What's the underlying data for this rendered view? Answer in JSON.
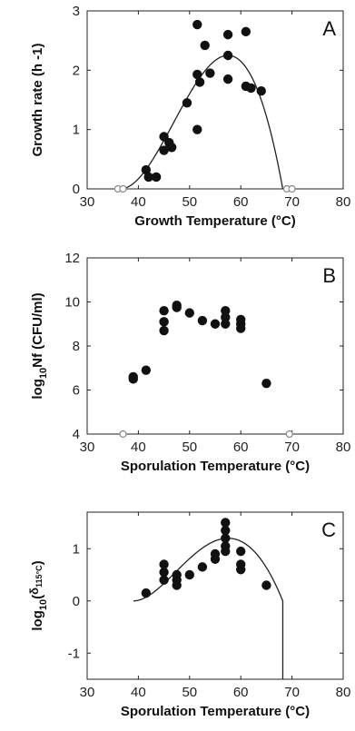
{
  "chart_data": [
    {
      "type": "scatter",
      "panel_label": "A",
      "xlabel": "Growth Temperature (°C)",
      "ylabel": "Growth rate (h -1)",
      "xlim": [
        30,
        80
      ],
      "ylim": [
        0,
        3
      ],
      "xticks": [
        "30",
        "40",
        "50",
        "60",
        "70",
        "80"
      ],
      "yticks": [
        "0",
        "1",
        "2",
        "3"
      ],
      "grid": false,
      "series": [
        {
          "marker": "filled",
          "x": [
            41.5,
            42,
            43.5,
            45,
            45,
            46,
            46.5,
            46.5,
            49.5,
            51.5,
            51.5,
            51.5,
            52,
            53,
            54,
            57.5,
            57.5,
            57.5,
            61,
            61,
            62,
            64
          ],
          "y": [
            0.32,
            0.2,
            0.2,
            0.88,
            0.65,
            0.78,
            0.7,
            0.7,
            1.45,
            2.77,
            1.93,
            1.0,
            1.8,
            2.42,
            1.95,
            2.6,
            2.25,
            1.85,
            2.65,
            1.73,
            1.7,
            1.65
          ]
        },
        {
          "marker": "open",
          "x": [
            36,
            37,
            69,
            70
          ],
          "y": [
            0,
            0,
            0,
            0
          ]
        }
      ],
      "curve": {
        "model": "cardinal",
        "Tmin": 36.5,
        "Topt": 57.5,
        "Tmax": 68.2,
        "peak": 2.25
      }
    },
    {
      "type": "scatter",
      "panel_label": "B",
      "xlabel": "Sporulation Temperature (°C)",
      "ylabel": "log10Nf (CFU/ml)",
      "xlim": [
        30,
        80
      ],
      "ylim": [
        4,
        12
      ],
      "xticks": [
        "30",
        "40",
        "50",
        "60",
        "70",
        "80"
      ],
      "yticks": [
        "4",
        "6",
        "8",
        "10",
        "12"
      ],
      "grid": false,
      "series": [
        {
          "marker": "filled",
          "x": [
            39,
            39,
            41.5,
            45,
            45,
            45,
            47.5,
            47.5,
            50,
            52.5,
            55,
            57,
            57,
            57,
            60,
            60,
            60,
            65
          ],
          "y": [
            6.6,
            6.5,
            6.9,
            9.6,
            9.1,
            8.7,
            9.85,
            9.75,
            9.5,
            9.15,
            9.0,
            9.6,
            9.3,
            9.0,
            9.2,
            9.0,
            8.8,
            6.3
          ]
        },
        {
          "marker": "open",
          "x": [
            37,
            69.5
          ],
          "y": [
            4,
            4
          ]
        }
      ]
    },
    {
      "type": "scatter",
      "panel_label": "C",
      "xlabel": "Sporulation Temperature (°C)",
      "ylabel": "log10(δ115°C)",
      "xlim": [
        30,
        80
      ],
      "ylim": [
        -1.5,
        1.7
      ],
      "xticks": [
        "30",
        "40",
        "50",
        "60",
        "70",
        "80"
      ],
      "yticks": [
        "-1",
        "0",
        "1"
      ],
      "grid": false,
      "series": [
        {
          "marker": "filled",
          "x": [
            41.5,
            45,
            45,
            45,
            47.5,
            47.5,
            47.5,
            50,
            52.5,
            55,
            55,
            57,
            57,
            57,
            57,
            57,
            60,
            60,
            60,
            65
          ],
          "y": [
            0.15,
            0.7,
            0.55,
            0.4,
            0.5,
            0.4,
            0.3,
            0.5,
            0.65,
            0.9,
            0.8,
            1.5,
            1.35,
            1.2,
            1.05,
            0.95,
            0.95,
            0.7,
            0.6,
            0.3
          ]
        }
      ],
      "curve": {
        "model": "cardinal",
        "Tmin": 39,
        "Topt": 57.5,
        "Tmax": 68.2,
        "peak": 1.2
      }
    }
  ]
}
